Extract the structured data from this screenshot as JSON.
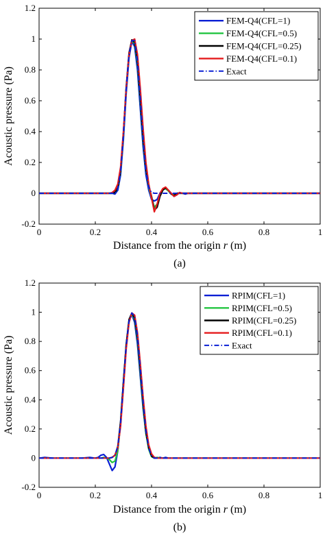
{
  "chart_data": [
    {
      "type": "line",
      "panel_label": "(a)",
      "xlabel_prefix": "Distance from the origin ",
      "xlabel_var": "r",
      "xlabel_suffix": " (m)",
      "ylabel": "Acoustic pressure (Pa)",
      "xlim": [
        0,
        1
      ],
      "ylim": [
        -0.2,
        1.2
      ],
      "xticks": [
        "0",
        "0.2",
        "0.4",
        "0.6",
        "0.8",
        "1"
      ],
      "yticks": [
        "-0.2",
        "0",
        "0.2",
        "0.4",
        "0.6",
        "0.8",
        "1",
        "1.2"
      ],
      "grid": false,
      "legend_position": "top-right",
      "series": [
        {
          "name": "FEM-Q4(CFL=1)",
          "color": "#0a1fd4",
          "dash": "solid",
          "x": [
            0,
            0.26,
            0.27,
            0.28,
            0.29,
            0.3,
            0.31,
            0.32,
            0.33,
            0.34,
            0.35,
            0.36,
            0.37,
            0.38,
            0.39,
            0.4,
            0.41,
            0.42,
            0.43,
            0.44,
            0.45,
            0.46,
            0.47,
            0.48,
            0.49,
            0.5,
            0.51,
            0.52,
            0.53,
            1.0
          ],
          "y": [
            0,
            0,
            -0.005,
            0.02,
            0.12,
            0.35,
            0.65,
            0.88,
            0.985,
            0.95,
            0.8,
            0.55,
            0.3,
            0.12,
            0.02,
            -0.04,
            -0.05,
            -0.04,
            0.0,
            0.025,
            0.035,
            0.02,
            0.0,
            -0.02,
            -0.01,
            0.005,
            0.0,
            -0.005,
            0,
            0
          ]
        },
        {
          "name": "FEM-Q4(CFL=0.5)",
          "color": "#22c440",
          "dash": "solid",
          "x": [
            0,
            0.26,
            0.27,
            0.28,
            0.29,
            0.3,
            0.31,
            0.32,
            0.33,
            0.34,
            0.35,
            0.36,
            0.37,
            0.38,
            0.39,
            0.4,
            0.41,
            0.42,
            0.43,
            0.44,
            0.45,
            0.46,
            0.47,
            0.48,
            0.49,
            0.5,
            1.0
          ],
          "y": [
            0,
            0,
            0.005,
            0.03,
            0.14,
            0.38,
            0.68,
            0.9,
            0.99,
            0.97,
            0.84,
            0.6,
            0.34,
            0.15,
            0.04,
            -0.03,
            -0.09,
            -0.07,
            -0.01,
            0.025,
            0.03,
            0.015,
            -0.005,
            -0.01,
            0.0,
            0,
            0
          ]
        },
        {
          "name": "FEM-Q4(CFL=0.25)",
          "color": "#000000",
          "dash": "solid",
          "x": [
            0,
            0.26,
            0.27,
            0.28,
            0.29,
            0.3,
            0.31,
            0.32,
            0.33,
            0.34,
            0.35,
            0.36,
            0.37,
            0.38,
            0.39,
            0.4,
            0.41,
            0.42,
            0.43,
            0.44,
            0.45,
            0.46,
            0.47,
            0.48,
            0.49,
            0.5,
            1.0
          ],
          "y": [
            0,
            0,
            0.006,
            0.035,
            0.15,
            0.39,
            0.69,
            0.91,
            0.995,
            0.98,
            0.86,
            0.62,
            0.36,
            0.16,
            0.05,
            -0.02,
            -0.11,
            -0.09,
            -0.02,
            0.02,
            0.035,
            0.02,
            -0.005,
            -0.015,
            0.0,
            0,
            0
          ]
        },
        {
          "name": "FEM-Q4(CFL=0.1)",
          "color": "#e41a1c",
          "dash": "solid",
          "x": [
            0,
            0.25,
            0.26,
            0.27,
            0.28,
            0.29,
            0.3,
            0.31,
            0.32,
            0.33,
            0.34,
            0.35,
            0.36,
            0.37,
            0.38,
            0.39,
            0.4,
            0.41,
            0.42,
            0.43,
            0.44,
            0.45,
            0.46,
            0.47,
            0.48,
            0.49,
            0.5,
            0.51,
            1.0
          ],
          "y": [
            0,
            0,
            0.005,
            0.02,
            0.06,
            0.17,
            0.4,
            0.68,
            0.9,
            0.99,
            1.0,
            0.9,
            0.68,
            0.42,
            0.2,
            0.06,
            -0.03,
            -0.12,
            -0.07,
            0.0,
            0.03,
            0.04,
            0.02,
            0.0,
            -0.02,
            -0.01,
            0.005,
            0,
            0
          ]
        },
        {
          "name": "Exact",
          "color": "#0a1fd4",
          "dash": "dashdot",
          "x": [
            0,
            0.27,
            0.28,
            0.29,
            0.3,
            0.31,
            0.32,
            0.33,
            0.34,
            0.35,
            0.36,
            0.37,
            0.38,
            0.39,
            0.4,
            0.41,
            1.0
          ],
          "y": [
            0,
            0,
            0.03,
            0.14,
            0.38,
            0.68,
            0.9,
            0.99,
            0.99,
            0.86,
            0.62,
            0.36,
            0.15,
            0.04,
            0.005,
            0,
            0
          ]
        }
      ]
    },
    {
      "type": "line",
      "panel_label": "(b)",
      "xlabel_prefix": "Distance from the origin ",
      "xlabel_var": "r",
      "xlabel_suffix": " (m)",
      "ylabel": "Acoustic pressure (Pa)",
      "xlim": [
        0,
        1
      ],
      "ylim": [
        -0.2,
        1.2
      ],
      "xticks": [
        "0",
        "0.2",
        "0.4",
        "0.6",
        "0.8",
        "1"
      ],
      "yticks": [
        "-0.2",
        "0",
        "0.2",
        "0.4",
        "0.6",
        "0.8",
        "1",
        "1.2"
      ],
      "grid": false,
      "legend_position": "top-right",
      "series": [
        {
          "name": "RPIM(CFL=1)",
          "color": "#0a1fd4",
          "dash": "solid",
          "x": [
            0,
            0.02,
            0.05,
            0.1,
            0.15,
            0.18,
            0.2,
            0.21,
            0.22,
            0.23,
            0.24,
            0.25,
            0.26,
            0.27,
            0.28,
            0.29,
            0.3,
            0.31,
            0.32,
            0.33,
            0.34,
            0.35,
            0.36,
            0.37,
            0.38,
            0.39,
            0.4,
            0.41,
            0.42,
            0.43,
            0.44,
            0.45,
            0.46,
            1.0
          ],
          "y": [
            0,
            0.005,
            0.0,
            0.0,
            0.0,
            0.005,
            0.0,
            0.005,
            0.02,
            0.025,
            0.005,
            -0.04,
            -0.085,
            -0.06,
            0.05,
            0.25,
            0.52,
            0.78,
            0.94,
            0.985,
            0.93,
            0.78,
            0.56,
            0.34,
            0.17,
            0.07,
            0.025,
            0.005,
            0.0,
            0.005,
            0.0,
            0.005,
            0,
            0
          ]
        },
        {
          "name": "RPIM(CFL=0.5)",
          "color": "#22c440",
          "dash": "solid",
          "x": [
            0,
            0.22,
            0.23,
            0.24,
            0.25,
            0.26,
            0.27,
            0.28,
            0.29,
            0.3,
            0.31,
            0.32,
            0.33,
            0.34,
            0.35,
            0.36,
            0.37,
            0.38,
            0.39,
            0.4,
            0.41,
            0.42,
            0.43,
            1.0
          ],
          "y": [
            0,
            0,
            0.005,
            0.0,
            -0.01,
            -0.03,
            -0.02,
            0.05,
            0.24,
            0.51,
            0.77,
            0.94,
            0.99,
            0.95,
            0.81,
            0.59,
            0.36,
            0.17,
            0.06,
            0.01,
            0.0,
            0.005,
            0,
            0
          ]
        },
        {
          "name": "RPIM(CFL=0.25)",
          "color": "#000000",
          "dash": "solid",
          "x": [
            0,
            0.24,
            0.25,
            0.26,
            0.27,
            0.28,
            0.29,
            0.3,
            0.31,
            0.32,
            0.33,
            0.34,
            0.35,
            0.36,
            0.37,
            0.38,
            0.39,
            0.4,
            0.41,
            0.42,
            1.0
          ],
          "y": [
            0,
            0,
            0.0,
            0.005,
            0.02,
            0.08,
            0.25,
            0.52,
            0.78,
            0.95,
            0.995,
            0.96,
            0.83,
            0.61,
            0.38,
            0.18,
            0.07,
            0.015,
            0.0,
            0,
            0
          ]
        },
        {
          "name": "RPIM(CFL=0.1)",
          "color": "#e41a1c",
          "dash": "solid",
          "x": [
            0,
            0.25,
            0.26,
            0.27,
            0.28,
            0.29,
            0.3,
            0.31,
            0.32,
            0.33,
            0.34,
            0.35,
            0.36,
            0.37,
            0.38,
            0.39,
            0.4,
            0.41,
            0.42,
            0.43,
            1.0
          ],
          "y": [
            0,
            0,
            0.005,
            0.02,
            0.07,
            0.22,
            0.48,
            0.75,
            0.93,
            0.995,
            0.98,
            0.86,
            0.65,
            0.42,
            0.22,
            0.09,
            0.03,
            0.005,
            0.0,
            0,
            0
          ]
        },
        {
          "name": "Exact",
          "color": "#0a1fd4",
          "dash": "dashdot",
          "x": [
            0,
            0.25,
            0.26,
            0.27,
            0.28,
            0.29,
            0.3,
            0.31,
            0.32,
            0.33,
            0.34,
            0.35,
            0.36,
            0.37,
            0.38,
            0.39,
            0.4,
            0.41,
            1.0
          ],
          "y": [
            0,
            0,
            0.005,
            0.02,
            0.08,
            0.24,
            0.51,
            0.77,
            0.94,
            0.995,
            0.97,
            0.84,
            0.62,
            0.39,
            0.19,
            0.07,
            0.015,
            0,
            0
          ]
        }
      ]
    }
  ]
}
